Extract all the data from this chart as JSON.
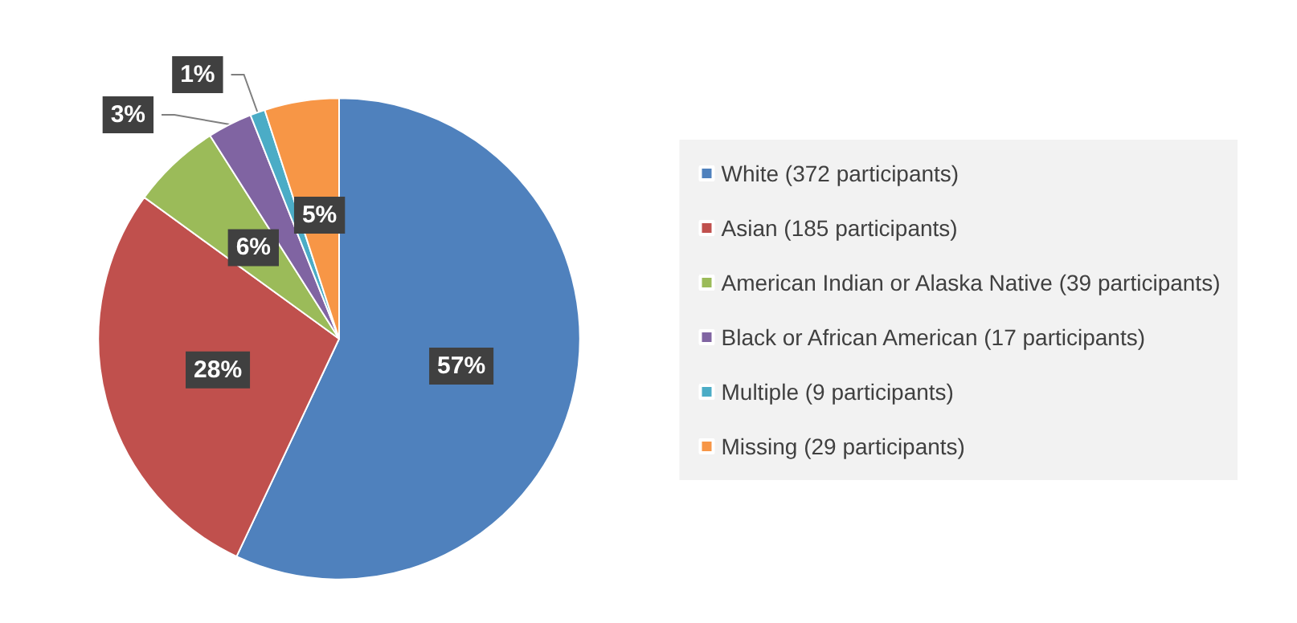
{
  "chart_data": {
    "type": "pie",
    "categories": [
      "White (372 participants)",
      "Asian (185 participants)",
      "American Indian or Alaska Native (39 participants)",
      "Black or African American (17 participants)",
      "Multiple (9 participants)",
      "Missing (29 participants)"
    ],
    "values": [
      57,
      28,
      6,
      3,
      1,
      5
    ],
    "value_labels": [
      "57%",
      "28%",
      "6%",
      "3%",
      "1%",
      "5%"
    ],
    "colors": [
      "#4f81bd",
      "#c0504d",
      "#9bbb59",
      "#8064a2",
      "#4bacc6",
      "#f79646"
    ],
    "legend": "right"
  }
}
